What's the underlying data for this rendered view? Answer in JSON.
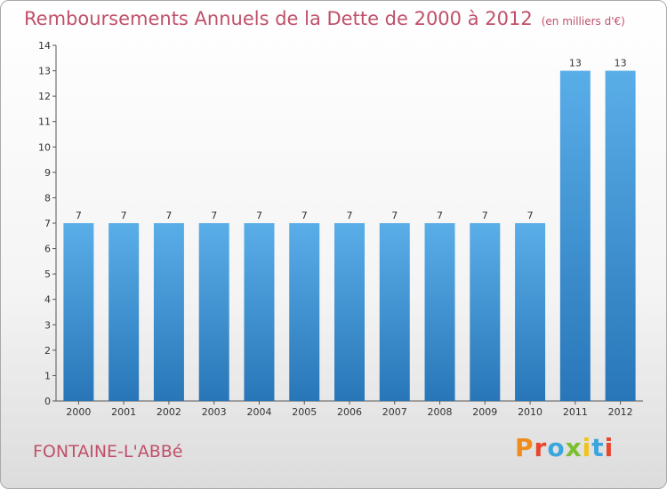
{
  "header": {
    "title": "Remboursements Annuels de la Dette de 2000 à 2012",
    "subtitle": "(en milliers d'€)"
  },
  "footer": {
    "place": "FONTAINE-L'ABBé",
    "logo": "Proxiti",
    "logo_colors": [
      "#f08c1e",
      "#e8472e",
      "#3aa6dd",
      "#7cbf2e",
      "#f0c419",
      "#3aa6dd",
      "#e8472e"
    ]
  },
  "chart_data": {
    "type": "bar",
    "categories": [
      "2000",
      "2001",
      "2002",
      "2003",
      "2004",
      "2005",
      "2006",
      "2007",
      "2008",
      "2009",
      "2010",
      "2011",
      "2012"
    ],
    "values": [
      7,
      7,
      7,
      7,
      7,
      7,
      7,
      7,
      7,
      7,
      7,
      13,
      13
    ],
    "data_labels": [
      "7",
      "7",
      "7",
      "7",
      "7",
      "7",
      "7",
      "7",
      "7",
      "7",
      "7",
      "13",
      "13"
    ],
    "title": "Remboursements Annuels de la Dette de 2000 à 2012",
    "xlabel": "",
    "ylabel": "",
    "ylim": [
      0,
      14
    ],
    "yticks": [
      0,
      1,
      2,
      3,
      4,
      5,
      6,
      7,
      8,
      9,
      10,
      11,
      12,
      13,
      14
    ],
    "grid": false,
    "bar_color_top": "#5aaee8",
    "bar_color_bottom": "#2876b8"
  }
}
